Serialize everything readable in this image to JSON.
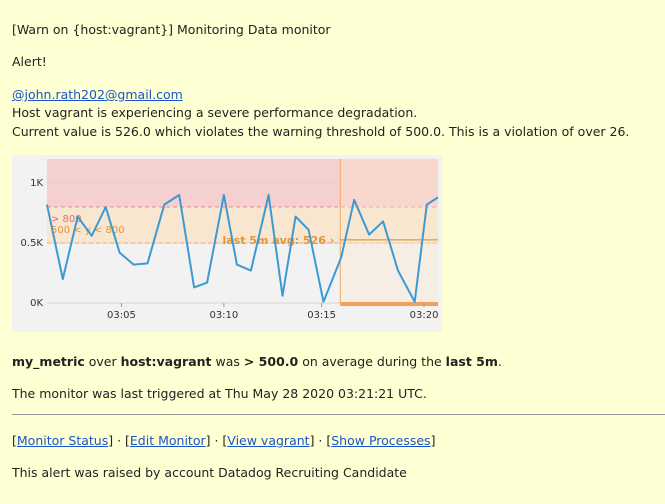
{
  "email": {
    "subject_line": "[Warn on {host:vagrant}] Monitoring Data monitor",
    "alert": "Alert!",
    "mention": "@john.rath202@gmail.com",
    "desc1": "Host vagrant is experiencing a severe performance degradation.",
    "desc2": "Current value is 526.0 which violates the warning threshold of 500.0. This is a violation of over 26.",
    "summary": {
      "metric": "my_metric",
      "t1": " over ",
      "scope": "host:vagrant",
      "t2": " was ",
      "threshold": "> 500.0",
      "t3": " on average during the ",
      "window": "last 5m",
      "t4": "."
    },
    "triggered": "The monitor was last triggered at Thu May 28 2020 03:21:21 UTC.",
    "links": {
      "open": "[",
      "status": "Monitor Status",
      "sep1": "] · [",
      "edit": "Edit Monitor",
      "sep2": "] · [",
      "view": "View vagrant",
      "sep3": "] · [",
      "processes": "Show Processes",
      "close": "]"
    },
    "footer": "This alert was raised by account Datadog Recruiting Candidate"
  },
  "chart_data": {
    "type": "line",
    "yticks": [
      "1K",
      "0.5K",
      "0K"
    ],
    "xticks": [
      "03:05",
      "03:10",
      "03:15",
      "03:20"
    ],
    "band_labels": {
      "alert": "> 800",
      "warn": "500 < y < 800"
    },
    "avg_label": "last 5m avg: 526",
    "ylim": [
      0,
      1200
    ],
    "xlim": [
      0,
      42
    ],
    "thresholds": {
      "warn": 500,
      "alert": 800
    },
    "window_start": 31.5,
    "line_color": "#3d9ad1",
    "alert_color": "#f6a6a6",
    "warn_color": "#ffd8a8",
    "series": [
      {
        "values": [
          [
            0,
            820
          ],
          [
            1.7,
            200
          ],
          [
            3.3,
            720
          ],
          [
            4.8,
            560
          ],
          [
            6.3,
            800
          ],
          [
            7.8,
            420
          ],
          [
            9.3,
            320
          ],
          [
            10.8,
            330
          ],
          [
            12.6,
            820
          ],
          [
            14.2,
            900
          ],
          [
            15.8,
            130
          ],
          [
            17.2,
            170
          ],
          [
            19.0,
            900
          ],
          [
            20.4,
            320
          ],
          [
            21.9,
            270
          ],
          [
            23.8,
            900
          ],
          [
            25.3,
            60
          ],
          [
            26.7,
            720
          ],
          [
            28.1,
            610
          ],
          [
            29.7,
            10
          ],
          [
            31.6,
            380
          ],
          [
            33.0,
            860
          ],
          [
            34.6,
            570
          ],
          [
            36.1,
            680
          ],
          [
            37.7,
            270
          ],
          [
            39.5,
            10
          ],
          [
            40.8,
            820
          ],
          [
            42.0,
            880
          ]
        ]
      }
    ]
  }
}
